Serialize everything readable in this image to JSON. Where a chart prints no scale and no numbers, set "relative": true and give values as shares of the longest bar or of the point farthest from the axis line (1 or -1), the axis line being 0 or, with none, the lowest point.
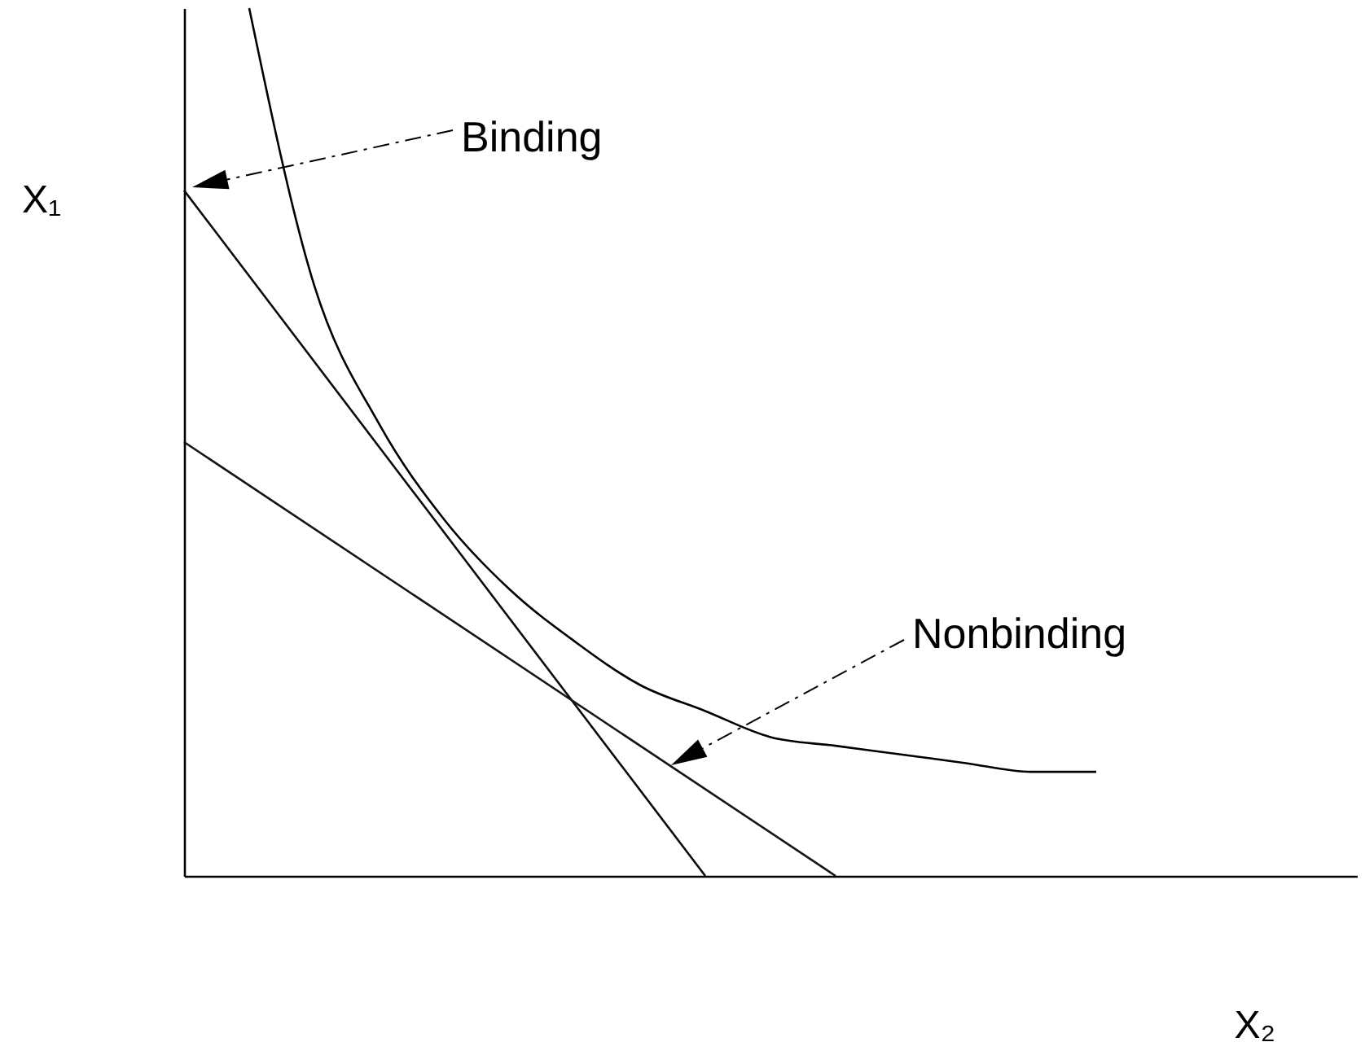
{
  "chart_data": {
    "type": "line",
    "relative": true,
    "xlabel": "X₂",
    "ylabel": "X₁",
    "categories": [
      null,
      null,
      null,
      null,
      null,
      null,
      null,
      null,
      null,
      null,
      null,
      null,
      null,
      null,
      null,
      null,
      null,
      null,
      null
    ],
    "series": [
      {
        "color": "#000000",
        "values": [
          null,
          1.0,
          0.68,
          0.52,
          0.41,
          0.33,
          0.27,
          0.22,
          0.19,
          0.16,
          0.15,
          0.14,
          0.13,
          0.12,
          0.12,
          null,
          null,
          null,
          null
        ]
      },
      {
        "color": "#0a0a0a",
        "values": [
          0.79,
          null,
          null,
          null,
          null,
          null,
          null,
          null,
          0,
          null,
          null,
          null,
          null,
          null,
          null,
          null,
          null,
          null,
          null
        ]
      },
      {
        "color": "#141414",
        "values": [
          0.5,
          null,
          null,
          null,
          null,
          null,
          null,
          null,
          null,
          null,
          0,
          null,
          null,
          null,
          null,
          null,
          null,
          null,
          null
        ]
      }
    ],
    "annotations": [
      "Binding",
      "Nonbinding"
    ],
    "grid": false
  }
}
